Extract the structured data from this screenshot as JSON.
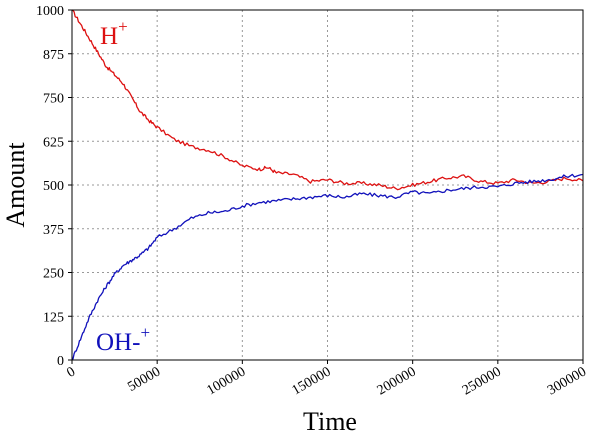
{
  "chart_data": {
    "type": "line",
    "title": "",
    "xlabel": "Time",
    "ylabel": "Amount",
    "xlim": [
      0,
      300000
    ],
    "ylim": [
      0,
      1000
    ],
    "grid": true,
    "x_ticks": [
      0,
      50000,
      100000,
      150000,
      200000,
      250000,
      300000
    ],
    "x_tick_labels": [
      "0",
      "50000",
      "100000",
      "150000",
      "200000",
      "250000",
      "300000"
    ],
    "y_ticks": [
      0,
      125,
      250,
      375,
      500,
      625,
      750,
      875,
      1000
    ],
    "y_tick_labels": [
      "0",
      "125",
      "250",
      "375",
      "500",
      "625",
      "750",
      "875",
      "1000"
    ],
    "series": [
      {
        "label_base": "H",
        "label_sup": "+",
        "color": "#dd1111",
        "x": [
          0,
          5000,
          10000,
          15000,
          20000,
          25000,
          30000,
          35000,
          40000,
          45000,
          50000,
          60000,
          70000,
          80000,
          90000,
          100000,
          110000,
          115000,
          120000,
          130000,
          140000,
          150000,
          160000,
          170000,
          180000,
          190000,
          200000,
          210000,
          220000,
          230000,
          240000,
          250000,
          260000,
          270000,
          280000,
          290000,
          300000
        ],
        "y": [
          1000,
          960,
          920,
          880,
          840,
          815,
          790,
          750,
          710,
          685,
          665,
          630,
          610,
          600,
          580,
          555,
          545,
          550,
          535,
          530,
          510,
          515,
          505,
          505,
          500,
          490,
          500,
          510,
          520,
          525,
          510,
          505,
          515,
          505,
          510,
          520,
          512
        ]
      },
      {
        "label_base": "OH-",
        "label_sup": "+",
        "color": "#1111bb",
        "x": [
          0,
          5000,
          10000,
          15000,
          20000,
          25000,
          30000,
          35000,
          40000,
          45000,
          50000,
          60000,
          70000,
          80000,
          90000,
          100000,
          110000,
          120000,
          130000,
          140000,
          150000,
          160000,
          170000,
          180000,
          190000,
          200000,
          210000,
          220000,
          230000,
          240000,
          250000,
          260000,
          270000,
          280000,
          290000,
          300000
        ],
        "y": [
          0,
          60,
          120,
          170,
          210,
          245,
          270,
          285,
          300,
          320,
          350,
          375,
          405,
          420,
          425,
          440,
          450,
          455,
          460,
          465,
          470,
          465,
          475,
          470,
          465,
          480,
          475,
          485,
          490,
          495,
          495,
          505,
          510,
          515,
          525,
          530
        ]
      }
    ]
  }
}
